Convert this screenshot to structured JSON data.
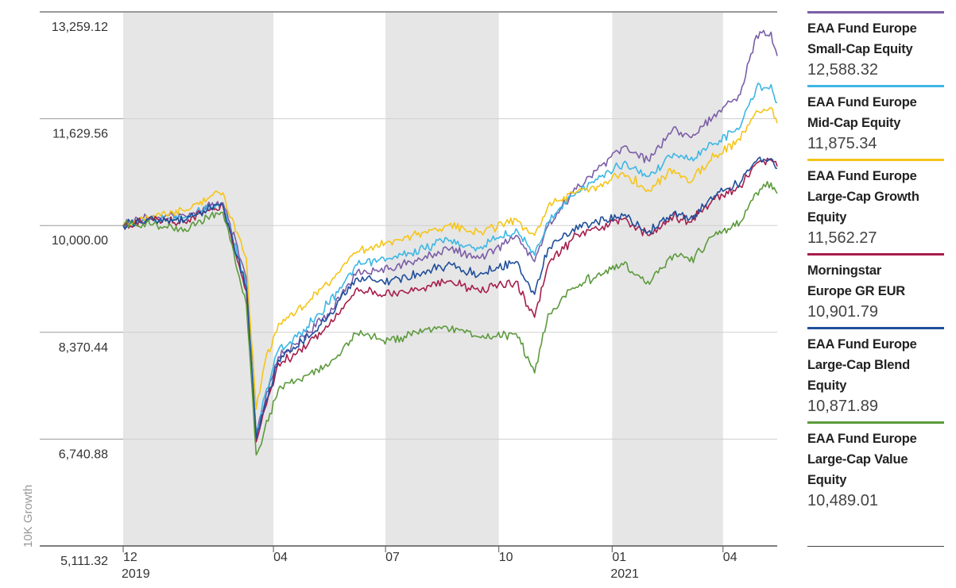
{
  "chart_data": {
    "type": "line",
    "ylabel": "10K Growth",
    "ylim": [
      5111.32,
      13259.12
    ],
    "y_ticks": [
      "13,259.12",
      "11,629.56",
      "10,000.00",
      "8,370.44",
      "6,740.88",
      "5,111.32"
    ],
    "y_tick_values": [
      13259.12,
      11629.56,
      10000.0,
      8370.44,
      6740.88,
      5111.32
    ],
    "x_ticks": [
      {
        "label": "12",
        "year": "2019",
        "date": "2019-12-01"
      },
      {
        "label": "04",
        "year": "",
        "date": "2020-04-01"
      },
      {
        "label": "07",
        "year": "",
        "date": "2020-07-01"
      },
      {
        "label": "10",
        "year": "",
        "date": "2020-10-01"
      },
      {
        "label": "01",
        "year": "2021",
        "date": "2021-01-01"
      },
      {
        "label": "04",
        "year": "",
        "date": "2021-04-01"
      }
    ],
    "xlim": [
      "2019-12-01",
      "2021-05-15"
    ],
    "shaded_bands": [
      [
        "2019-12-01",
        "2020-04-01"
      ],
      [
        "2020-07-01",
        "2020-10-01"
      ],
      [
        "2021-01-01",
        "2021-04-01"
      ]
    ],
    "grid": true,
    "legend_position": "right",
    "series": [
      {
        "name": "EAA Fund Europe Small-Cap Equity",
        "name_lines": [
          "EAA Fund Europe",
          "Small-Cap Equity"
        ],
        "value_label": "12,588.32",
        "color": "#7b5ea7",
        "points": [
          [
            "2019-12-01",
            10000
          ],
          [
            "2019-12-20",
            10120
          ],
          [
            "2020-01-20",
            10150
          ],
          [
            "2020-02-10",
            10300
          ],
          [
            "2020-02-20",
            10350
          ],
          [
            "2020-03-10",
            9200
          ],
          [
            "2020-03-18",
            6850
          ],
          [
            "2020-03-25",
            7300
          ],
          [
            "2020-04-05",
            8000
          ],
          [
            "2020-04-20",
            8200
          ],
          [
            "2020-05-15",
            8650
          ],
          [
            "2020-06-08",
            9300
          ],
          [
            "2020-07-05",
            9350
          ],
          [
            "2020-08-01",
            9500
          ],
          [
            "2020-08-20",
            9650
          ],
          [
            "2020-09-15",
            9500
          ],
          [
            "2020-10-15",
            9850
          ],
          [
            "2020-10-30",
            9450
          ],
          [
            "2020-11-10",
            10000
          ],
          [
            "2020-11-30",
            10500
          ],
          [
            "2020-12-20",
            10850
          ],
          [
            "2021-01-10",
            11200
          ],
          [
            "2021-01-30",
            11000
          ],
          [
            "2021-02-20",
            11500
          ],
          [
            "2021-03-05",
            11350
          ],
          [
            "2021-03-25",
            11700
          ],
          [
            "2021-04-15",
            12000
          ],
          [
            "2021-04-28",
            12900
          ],
          [
            "2021-05-10",
            12950
          ],
          [
            "2021-05-15",
            12588.32
          ]
        ]
      },
      {
        "name": "EAA Fund Europe Mid-Cap Equity",
        "name_lines": [
          "EAA Fund Europe",
          "Mid-Cap Equity"
        ],
        "value_label": "11,875.34",
        "color": "#3db7e4",
        "points": [
          [
            "2019-12-01",
            10000
          ],
          [
            "2019-12-20",
            10100
          ],
          [
            "2020-01-20",
            10120
          ],
          [
            "2020-02-10",
            10280
          ],
          [
            "2020-02-20",
            10320
          ],
          [
            "2020-03-10",
            9100
          ],
          [
            "2020-03-18",
            6800
          ],
          [
            "2020-03-25",
            7400
          ],
          [
            "2020-04-05",
            8100
          ],
          [
            "2020-04-20",
            8300
          ],
          [
            "2020-05-15",
            8800
          ],
          [
            "2020-06-08",
            9400
          ],
          [
            "2020-07-05",
            9500
          ],
          [
            "2020-08-01",
            9650
          ],
          [
            "2020-08-20",
            9800
          ],
          [
            "2020-09-15",
            9650
          ],
          [
            "2020-10-15",
            9950
          ],
          [
            "2020-10-30",
            9550
          ],
          [
            "2020-11-10",
            10050
          ],
          [
            "2020-11-30",
            10450
          ],
          [
            "2020-12-20",
            10700
          ],
          [
            "2021-01-10",
            10950
          ],
          [
            "2021-01-30",
            10750
          ],
          [
            "2021-02-20",
            11100
          ],
          [
            "2021-03-05",
            11000
          ],
          [
            "2021-03-25",
            11250
          ],
          [
            "2021-04-15",
            11500
          ],
          [
            "2021-04-28",
            12100
          ],
          [
            "2021-05-10",
            12150
          ],
          [
            "2021-05-15",
            11875.34
          ]
        ]
      },
      {
        "name": "EAA Fund Europe Large-Cap Growth Equity",
        "name_lines": [
          "EAA Fund Europe",
          "Large-Cap Growth",
          "Equity"
        ],
        "value_label": "11,562.27",
        "color": "#f5c518",
        "points": [
          [
            "2019-12-01",
            10000
          ],
          [
            "2019-12-20",
            10150
          ],
          [
            "2020-01-20",
            10220
          ],
          [
            "2020-02-10",
            10450
          ],
          [
            "2020-02-20",
            10500
          ],
          [
            "2020-03-10",
            9500
          ],
          [
            "2020-03-18",
            7200
          ],
          [
            "2020-03-25",
            7900
          ],
          [
            "2020-04-05",
            8500
          ],
          [
            "2020-04-20",
            8700
          ],
          [
            "2020-05-15",
            9100
          ],
          [
            "2020-06-08",
            9600
          ],
          [
            "2020-07-05",
            9750
          ],
          [
            "2020-08-01",
            9900
          ],
          [
            "2020-08-20",
            10000
          ],
          [
            "2020-09-15",
            9900
          ],
          [
            "2020-10-15",
            10100
          ],
          [
            "2020-10-30",
            9850
          ],
          [
            "2020-11-10",
            10300
          ],
          [
            "2020-11-30",
            10500
          ],
          [
            "2020-12-20",
            10600
          ],
          [
            "2021-01-10",
            10800
          ],
          [
            "2021-01-30",
            10550
          ],
          [
            "2021-02-20",
            10850
          ],
          [
            "2021-03-05",
            10650
          ],
          [
            "2021-03-25",
            11050
          ],
          [
            "2021-04-15",
            11300
          ],
          [
            "2021-04-28",
            11750
          ],
          [
            "2021-05-10",
            11800
          ],
          [
            "2021-05-15",
            11562.27
          ]
        ]
      },
      {
        "name": "Morningstar Europe GR EUR",
        "name_lines": [
          "Morningstar",
          "Europe GR EUR"
        ],
        "value_label": "10,901.79",
        "color": "#a71e4a",
        "points": [
          [
            "2019-12-01",
            10000
          ],
          [
            "2019-12-20",
            10080
          ],
          [
            "2020-01-20",
            10050
          ],
          [
            "2020-02-10",
            10250
          ],
          [
            "2020-02-20",
            10300
          ],
          [
            "2020-03-10",
            9000
          ],
          [
            "2020-03-18",
            6700
          ],
          [
            "2020-03-25",
            7200
          ],
          [
            "2020-04-05",
            7900
          ],
          [
            "2020-04-20",
            8050
          ],
          [
            "2020-05-15",
            8450
          ],
          [
            "2020-06-08",
            9050
          ],
          [
            "2020-07-05",
            8950
          ],
          [
            "2020-08-01",
            9050
          ],
          [
            "2020-08-20",
            9150
          ],
          [
            "2020-09-15",
            9000
          ],
          [
            "2020-10-15",
            9150
          ],
          [
            "2020-10-30",
            8600
          ],
          [
            "2020-11-10",
            9400
          ],
          [
            "2020-11-30",
            9800
          ],
          [
            "2020-12-20",
            9950
          ],
          [
            "2021-01-10",
            10100
          ],
          [
            "2021-01-30",
            9850
          ],
          [
            "2021-02-20",
            10150
          ],
          [
            "2021-03-05",
            10050
          ],
          [
            "2021-03-25",
            10400
          ],
          [
            "2021-04-15",
            10600
          ],
          [
            "2021-04-28",
            10950
          ],
          [
            "2021-05-10",
            11000
          ],
          [
            "2021-05-15",
            10901.79
          ]
        ]
      },
      {
        "name": "EAA Fund Europe Large-Cap Blend Equity",
        "name_lines": [
          "EAA Fund Europe",
          "Large-Cap Blend",
          "Equity"
        ],
        "value_label": "10,871.89",
        "color": "#1f4e9a",
        "points": [
          [
            "2019-12-01",
            10000
          ],
          [
            "2019-12-20",
            10090
          ],
          [
            "2020-01-20",
            10080
          ],
          [
            "2020-02-10",
            10270
          ],
          [
            "2020-02-20",
            10310
          ],
          [
            "2020-03-10",
            9050
          ],
          [
            "2020-03-18",
            6750
          ],
          [
            "2020-03-25",
            7250
          ],
          [
            "2020-04-05",
            7950
          ],
          [
            "2020-04-20",
            8150
          ],
          [
            "2020-05-15",
            8600
          ],
          [
            "2020-06-08",
            9200
          ],
          [
            "2020-07-05",
            9150
          ],
          [
            "2020-08-01",
            9300
          ],
          [
            "2020-08-20",
            9400
          ],
          [
            "2020-09-15",
            9250
          ],
          [
            "2020-10-15",
            9450
          ],
          [
            "2020-10-30",
            8950
          ],
          [
            "2020-11-10",
            9650
          ],
          [
            "2020-11-30",
            9950
          ],
          [
            "2020-12-20",
            10050
          ],
          [
            "2021-01-10",
            10150
          ],
          [
            "2021-01-30",
            9900
          ],
          [
            "2021-02-20",
            10200
          ],
          [
            "2021-03-05",
            10100
          ],
          [
            "2021-03-25",
            10450
          ],
          [
            "2021-04-15",
            10650
          ],
          [
            "2021-04-28",
            10980
          ],
          [
            "2021-05-10",
            11020
          ],
          [
            "2021-05-15",
            10871.89
          ]
        ]
      },
      {
        "name": "EAA Fund Europe Large-Cap Value Equity",
        "name_lines": [
          "EAA Fund Europe",
          "Large-Cap Value",
          "Equity"
        ],
        "value_label": "10,489.01",
        "color": "#5c9a3c",
        "points": [
          [
            "2019-12-01",
            10000
          ],
          [
            "2019-12-20",
            10050
          ],
          [
            "2020-01-20",
            9950
          ],
          [
            "2020-02-10",
            10150
          ],
          [
            "2020-02-20",
            10200
          ],
          [
            "2020-03-10",
            8800
          ],
          [
            "2020-03-18",
            6500
          ],
          [
            "2020-03-25",
            6900
          ],
          [
            "2020-04-05",
            7500
          ],
          [
            "2020-04-20",
            7650
          ],
          [
            "2020-05-15",
            7850
          ],
          [
            "2020-06-08",
            8350
          ],
          [
            "2020-07-05",
            8250
          ],
          [
            "2020-08-01",
            8400
          ],
          [
            "2020-08-20",
            8450
          ],
          [
            "2020-09-15",
            8300
          ],
          [
            "2020-10-15",
            8350
          ],
          [
            "2020-10-30",
            7750
          ],
          [
            "2020-11-10",
            8650
          ],
          [
            "2020-11-30",
            9050
          ],
          [
            "2020-12-20",
            9250
          ],
          [
            "2021-01-10",
            9400
          ],
          [
            "2021-01-30",
            9150
          ],
          [
            "2021-02-20",
            9550
          ],
          [
            "2021-03-05",
            9450
          ],
          [
            "2021-03-25",
            9850
          ],
          [
            "2021-04-15",
            10050
          ],
          [
            "2021-04-28",
            10500
          ],
          [
            "2021-05-10",
            10650
          ],
          [
            "2021-05-15",
            10489.01
          ]
        ]
      }
    ]
  }
}
